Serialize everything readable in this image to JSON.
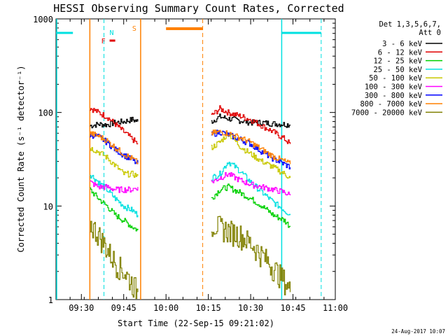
{
  "chart_data": {
    "type": "line",
    "title": "HESSI Observing Summary Count Rates, Corrected",
    "xlabel": "Start Time (22-Sep-15 09:21:02)",
    "ylabel": "Corrected Count Rate (s⁻¹ detector⁻¹)",
    "x_ticks": [
      "09:30",
      "09:45",
      "10:00",
      "10:15",
      "10:30",
      "10:45",
      "11:00"
    ],
    "xlim": [
      "09:21",
      "11:00"
    ],
    "y_scale": "log",
    "ylim": [
      1,
      1000
    ],
    "y_ticks": [
      "1",
      "10",
      "100",
      "1000"
    ],
    "legend_header": [
      "Det 1,3,5,6,7,",
      "Att 0"
    ],
    "legend_position": "right",
    "series": [
      {
        "name": "3 - 6 keV",
        "color": "#000000",
        "segment1": [
          [
            "09:33",
            72
          ],
          [
            "09:36",
            75
          ],
          [
            "09:39",
            74
          ],
          [
            "09:42",
            78
          ],
          [
            "09:45",
            80
          ],
          [
            "09:48",
            84
          ],
          [
            "09:50",
            80
          ]
        ],
        "segment2": [
          [
            "10:16",
            80
          ],
          [
            "10:19",
            90
          ],
          [
            "10:22",
            86
          ],
          [
            "10:26",
            82
          ],
          [
            "10:30",
            78
          ],
          [
            "10:34",
            78
          ],
          [
            "10:38",
            76
          ],
          [
            "10:42",
            75
          ],
          [
            "10:44",
            74
          ]
        ]
      },
      {
        "name": "6 - 12 keV",
        "color": "#e00000",
        "segment1": [
          [
            "09:33",
            112
          ],
          [
            "09:36",
            100
          ],
          [
            "09:39",
            90
          ],
          [
            "09:42",
            75
          ],
          [
            "09:45",
            62
          ],
          [
            "09:48",
            52
          ],
          [
            "09:50",
            46
          ]
        ],
        "segment2": [
          [
            "10:16",
            92
          ],
          [
            "10:19",
            110
          ],
          [
            "10:22",
            100
          ],
          [
            "10:26",
            92
          ],
          [
            "10:30",
            84
          ],
          [
            "10:34",
            72
          ],
          [
            "10:38",
            62
          ],
          [
            "10:42",
            52
          ],
          [
            "10:44",
            46
          ]
        ]
      },
      {
        "name": "12 - 25 keV",
        "color": "#00d000",
        "segment1": [
          [
            "09:33",
            15
          ],
          [
            "09:36",
            12
          ],
          [
            "09:39",
            10
          ],
          [
            "09:42",
            8
          ],
          [
            "09:45",
            7
          ],
          [
            "09:48",
            6
          ],
          [
            "09:50",
            5.5
          ]
        ],
        "segment2": [
          [
            "10:16",
            12
          ],
          [
            "10:19",
            15
          ],
          [
            "10:22",
            16
          ],
          [
            "10:26",
            14
          ],
          [
            "10:30",
            12
          ],
          [
            "10:34",
            10
          ],
          [
            "10:38",
            8
          ],
          [
            "10:42",
            7
          ],
          [
            "10:44",
            6
          ]
        ]
      },
      {
        "name": "25 - 50 keV",
        "color": "#00e0e0",
        "segment1": [
          [
            "09:33",
            22
          ],
          [
            "09:36",
            18
          ],
          [
            "09:39",
            15
          ],
          [
            "09:42",
            12
          ],
          [
            "09:45",
            10
          ],
          [
            "09:48",
            9
          ],
          [
            "09:50",
            8
          ]
        ],
        "segment2": [
          [
            "10:16",
            20
          ],
          [
            "10:19",
            22
          ],
          [
            "10:22",
            30
          ],
          [
            "10:26",
            24
          ],
          [
            "10:30",
            18
          ],
          [
            "10:34",
            14
          ],
          [
            "10:38",
            11
          ],
          [
            "10:42",
            9
          ],
          [
            "10:44",
            8
          ]
        ]
      },
      {
        "name": "50 - 100 keV",
        "color": "#c8c800",
        "segment1": [
          [
            "09:33",
            42
          ],
          [
            "09:36",
            38
          ],
          [
            "09:39",
            33
          ],
          [
            "09:42",
            27
          ],
          [
            "09:45",
            22
          ],
          [
            "09:48",
            22
          ],
          [
            "09:50",
            21
          ]
        ],
        "segment2": [
          [
            "10:16",
            42
          ],
          [
            "10:19",
            48
          ],
          [
            "10:22",
            60
          ],
          [
            "10:26",
            44
          ],
          [
            "10:30",
            36
          ],
          [
            "10:34",
            30
          ],
          [
            "10:38",
            26
          ],
          [
            "10:42",
            22
          ],
          [
            "10:44",
            20
          ]
        ]
      },
      {
        "name": "100 - 300 keV",
        "color": "#ff00ff",
        "segment1": [
          [
            "09:33",
            18
          ],
          [
            "09:36",
            16
          ],
          [
            "09:39",
            16
          ],
          [
            "09:42",
            15
          ],
          [
            "09:45",
            15
          ],
          [
            "09:48",
            15
          ],
          [
            "09:50",
            16
          ]
        ],
        "segment2": [
          [
            "10:16",
            18
          ],
          [
            "10:19",
            20
          ],
          [
            "10:22",
            22
          ],
          [
            "10:26",
            19
          ],
          [
            "10:30",
            17
          ],
          [
            "10:34",
            16
          ],
          [
            "10:38",
            15
          ],
          [
            "10:42",
            14
          ],
          [
            "10:44",
            13
          ]
        ]
      },
      {
        "name": "300 - 800 keV",
        "color": "#0000ff",
        "segment1": [
          [
            "09:33",
            58
          ],
          [
            "09:36",
            55
          ],
          [
            "09:39",
            48
          ],
          [
            "09:42",
            40
          ],
          [
            "09:45",
            35
          ],
          [
            "09:48",
            31
          ],
          [
            "09:50",
            28
          ]
        ],
        "segment2": [
          [
            "10:16",
            58
          ],
          [
            "10:19",
            62
          ],
          [
            "10:22",
            58
          ],
          [
            "10:26",
            52
          ],
          [
            "10:30",
            46
          ],
          [
            "10:34",
            38
          ],
          [
            "10:38",
            32
          ],
          [
            "10:42",
            28
          ],
          [
            "10:44",
            26
          ]
        ]
      },
      {
        "name": "800 - 7000 keV",
        "color": "#ff8000",
        "segment1": [
          [
            "09:33",
            60
          ],
          [
            "09:36",
            56
          ],
          [
            "09:39",
            50
          ],
          [
            "09:42",
            42
          ],
          [
            "09:45",
            36
          ],
          [
            "09:48",
            32
          ],
          [
            "09:50",
            29
          ]
        ],
        "segment2": [
          [
            "10:16",
            60
          ],
          [
            "10:19",
            62
          ],
          [
            "10:22",
            60
          ],
          [
            "10:26",
            54
          ],
          [
            "10:30",
            48
          ],
          [
            "10:34",
            40
          ],
          [
            "10:38",
            34
          ],
          [
            "10:42",
            30
          ],
          [
            "10:44",
            28
          ]
        ]
      },
      {
        "name": "7000 - 20000 keV",
        "color": "#808000",
        "segment1": [
          [
            "09:33",
            6.5
          ],
          [
            "09:36",
            5
          ],
          [
            "09:39",
            3.5
          ],
          [
            "09:42",
            2.5
          ],
          [
            "09:45",
            2
          ],
          [
            "09:48",
            1.5
          ],
          [
            "09:50",
            1.2
          ]
        ],
        "segment2": [
          [
            "10:16",
            6.5
          ],
          [
            "10:19",
            6
          ],
          [
            "10:22",
            5.5
          ],
          [
            "10:26",
            5
          ],
          [
            "10:30",
            4
          ],
          [
            "10:34",
            3
          ],
          [
            "10:38",
            2.2
          ],
          [
            "10:42",
            1.6
          ],
          [
            "10:44",
            1.2
          ]
        ]
      }
    ],
    "annotations": [
      {
        "label": "N",
        "color": "#00e0e0"
      },
      {
        "label": "S",
        "color": "#ff8000"
      },
      {
        "label": "F",
        "color": "#e00000"
      }
    ],
    "night_intervals": [
      [
        "09:21",
        "09:27"
      ],
      [
        "10:41",
        "10:55"
      ]
    ],
    "saa_intervals": [
      [
        "10:00",
        "10:13"
      ]
    ],
    "flare_marker": [
      "09:40",
      "09:41"
    ],
    "night_edges": [
      "09:21",
      "09:38",
      "10:41",
      "10:55"
    ],
    "saa_edges": [
      "09:33",
      "09:51",
      "10:13"
    ],
    "timestamp": "24-Aug-2017 10:07"
  }
}
